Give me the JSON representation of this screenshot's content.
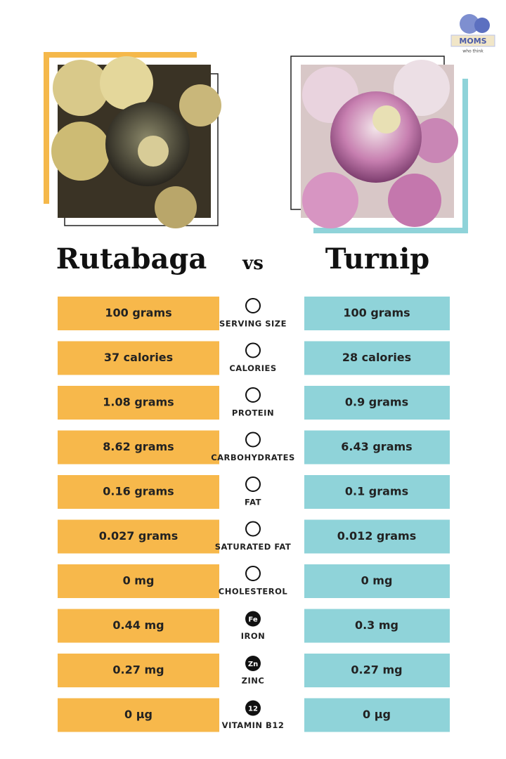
{
  "logo": {
    "text": "MOMS",
    "tagline": "who think"
  },
  "header": {
    "left": "Rutabaga",
    "vs": "vs",
    "right": "Turnip"
  },
  "rows": [
    {
      "left": "100 grams",
      "label": "SERVING SIZE",
      "right": "100 grams"
    },
    {
      "left": "37 calories",
      "label": "CALORIES",
      "right": "28 calories"
    },
    {
      "left": "1.08 grams",
      "label": "PROTEIN",
      "right": "0.9 grams"
    },
    {
      "left": "8.62 grams",
      "label": "CARBOHYDRATES",
      "right": "6.43 grams"
    },
    {
      "left": "0.16 grams",
      "label": "FAT",
      "right": "0.1 grams"
    },
    {
      "left": "0.027 grams",
      "label": "SATURATED FAT",
      "right": "0.012 grams"
    },
    {
      "left": "0 mg",
      "label": "CHOLESTEROL",
      "right": "0 mg"
    },
    {
      "left": "0.44 mg",
      "label": "IRON",
      "icon": "Fe",
      "right": "0.3 mg"
    },
    {
      "left": "0.27 mg",
      "label": "ZINC",
      "icon": "Zn",
      "right": "0.27 mg"
    },
    {
      "left": "0 µg",
      "label": "VITAMIN B12",
      "icon": "12",
      "right": "0 µg"
    }
  ]
}
